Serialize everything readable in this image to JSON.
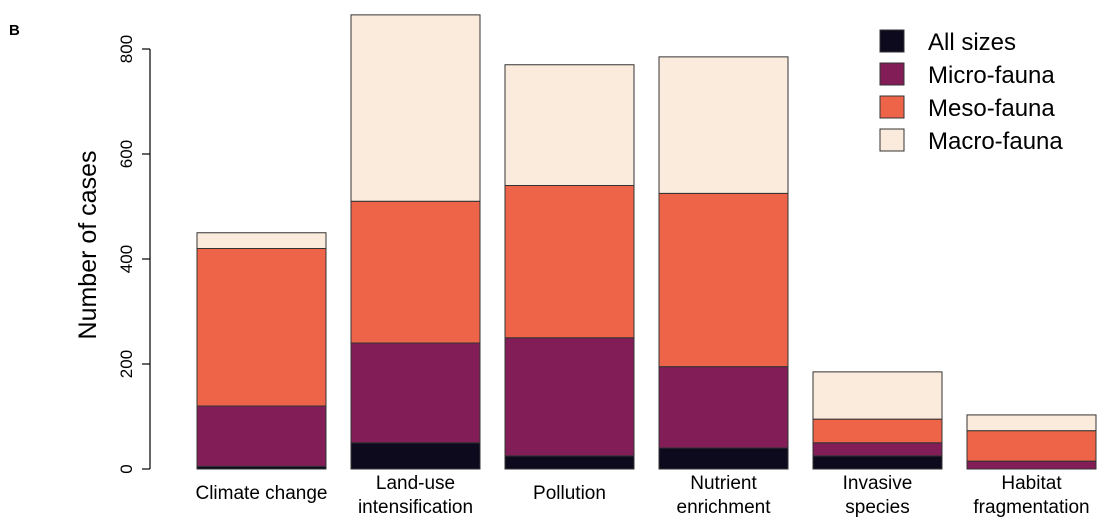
{
  "panel_label": "B",
  "chart_data": {
    "type": "bar",
    "stacked": true,
    "categories": [
      [
        "Climate change"
      ],
      [
        "Land-use",
        "intensification"
      ],
      [
        "Pollution"
      ],
      [
        "Nutrient",
        "enrichment"
      ],
      [
        "Invasive",
        "species"
      ],
      [
        "Habitat",
        "fragmentation"
      ]
    ],
    "series": [
      {
        "name": "All sizes",
        "color": "#0d0a1e",
        "values": [
          5,
          50,
          25,
          40,
          25,
          0
        ]
      },
      {
        "name": "Micro-fauna",
        "color": "#831d57",
        "values": [
          115,
          190,
          225,
          155,
          25,
          15
        ]
      },
      {
        "name": "Meso-fauna",
        "color": "#ee6448",
        "values": [
          300,
          270,
          290,
          330,
          45,
          58
        ]
      },
      {
        "name": "Macro-fauna",
        "color": "#fbebdd",
        "values": [
          30,
          355,
          230,
          260,
          90,
          30
        ]
      }
    ],
    "title": "",
    "xlabel": "",
    "ylabel": "Number of cases",
    "ylim": [
      0,
      800
    ],
    "yticks": [
      "0",
      "200",
      "400",
      "600",
      "800"
    ],
    "legend_position": "top-right",
    "grid": false
  }
}
